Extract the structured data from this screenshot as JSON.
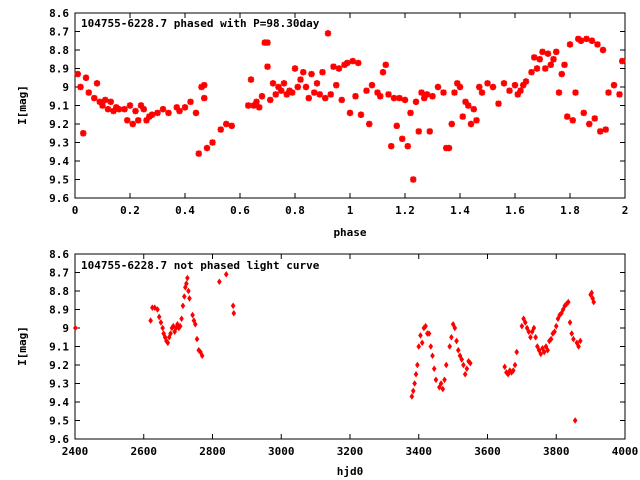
{
  "chart_data": [
    {
      "type": "scatter",
      "title": "104755-6228.7 phased with P=98.30day",
      "xlabel": "phase",
      "ylabel": "I[mag]",
      "xlim": [
        0,
        2
      ],
      "ylim": [
        9.6,
        8.6
      ],
      "y_inverted": true,
      "xticks": [
        "0",
        "0.2",
        "0.4",
        "0.6",
        "0.8",
        "1",
        "1.2",
        "1.4",
        "1.6",
        "1.8",
        "2"
      ],
      "yticks": [
        "8.6",
        "8.7",
        "8.8",
        "8.9",
        "9",
        "9.1",
        "9.2",
        "9.3",
        "9.4",
        "9.5",
        "9.6"
      ],
      "grid": false,
      "color": "#ff0000",
      "marker": "asterisk",
      "points": [
        [
          0.01,
          8.93
        ],
        [
          0.02,
          9.0
        ],
        [
          0.03,
          9.25
        ],
        [
          0.04,
          8.95
        ],
        [
          0.05,
          9.03
        ],
        [
          0.07,
          9.06
        ],
        [
          0.08,
          8.98
        ],
        [
          0.09,
          9.08
        ],
        [
          0.1,
          9.1
        ],
        [
          0.11,
          9.07
        ],
        [
          0.12,
          9.12
        ],
        [
          0.13,
          9.08
        ],
        [
          0.14,
          9.13
        ],
        [
          0.15,
          9.11
        ],
        [
          0.16,
          9.12
        ],
        [
          0.18,
          9.12
        ],
        [
          0.19,
          9.18
        ],
        [
          0.2,
          9.1
        ],
        [
          0.21,
          9.2
        ],
        [
          0.22,
          9.13
        ],
        [
          0.23,
          9.18
        ],
        [
          0.24,
          9.1
        ],
        [
          0.25,
          9.12
        ],
        [
          0.26,
          9.18
        ],
        [
          0.27,
          9.16
        ],
        [
          0.28,
          9.15
        ],
        [
          0.3,
          9.14
        ],
        [
          0.32,
          9.12
        ],
        [
          0.34,
          9.14
        ],
        [
          0.37,
          9.11
        ],
        [
          0.38,
          9.13
        ],
        [
          0.4,
          9.11
        ],
        [
          0.42,
          9.08
        ],
        [
          0.44,
          9.14
        ],
        [
          0.45,
          9.36
        ],
        [
          0.46,
          9.0
        ],
        [
          0.47,
          8.99
        ],
        [
          0.47,
          9.06
        ],
        [
          0.48,
          9.33
        ],
        [
          0.5,
          9.3
        ],
        [
          0.53,
          9.23
        ],
        [
          0.55,
          9.2
        ],
        [
          0.57,
          9.21
        ],
        [
          0.63,
          9.1
        ],
        [
          0.64,
          8.96
        ],
        [
          0.65,
          9.1
        ],
        [
          0.66,
          9.08
        ],
        [
          0.67,
          9.11
        ],
        [
          0.68,
          9.05
        ],
        [
          0.69,
          8.76
        ],
        [
          0.7,
          8.76
        ],
        [
          0.7,
          8.89
        ],
        [
          0.71,
          9.07
        ],
        [
          0.72,
          8.98
        ],
        [
          0.73,
          9.04
        ],
        [
          0.74,
          9.0
        ],
        [
          0.75,
          9.02
        ],
        [
          0.76,
          8.98
        ],
        [
          0.77,
          9.04
        ],
        [
          0.78,
          9.02
        ],
        [
          0.79,
          9.03
        ],
        [
          0.8,
          8.9
        ],
        [
          0.81,
          9.0
        ],
        [
          0.82,
          8.96
        ],
        [
          0.83,
          8.92
        ],
        [
          0.84,
          9.0
        ],
        [
          0.85,
          9.06
        ],
        [
          0.86,
          8.93
        ],
        [
          0.87,
          9.03
        ],
        [
          0.88,
          8.98
        ],
        [
          0.89,
          9.04
        ],
        [
          0.9,
          8.92
        ],
        [
          0.91,
          9.06
        ],
        [
          0.92,
          8.71
        ],
        [
          0.93,
          9.04
        ],
        [
          0.94,
          8.89
        ],
        [
          0.95,
          8.99
        ],
        [
          0.96,
          8.9
        ],
        [
          0.97,
          9.07
        ],
        [
          0.98,
          8.88
        ],
        [
          0.99,
          8.87
        ],
        [
          1.0,
          9.14
        ],
        [
          1.01,
          8.86
        ],
        [
          1.02,
          9.05
        ],
        [
          1.03,
          8.87
        ],
        [
          1.04,
          9.15
        ],
        [
          1.06,
          9.02
        ],
        [
          1.07,
          9.2
        ],
        [
          1.08,
          8.99
        ],
        [
          1.1,
          9.03
        ],
        [
          1.11,
          9.05
        ],
        [
          1.12,
          8.92
        ],
        [
          1.13,
          8.88
        ],
        [
          1.14,
          9.04
        ],
        [
          1.15,
          9.32
        ],
        [
          1.16,
          9.06
        ],
        [
          1.17,
          9.21
        ],
        [
          1.18,
          9.06
        ],
        [
          1.19,
          9.28
        ],
        [
          1.2,
          9.07
        ],
        [
          1.21,
          9.32
        ],
        [
          1.22,
          9.14
        ],
        [
          1.23,
          9.5
        ],
        [
          1.24,
          9.08
        ],
        [
          1.25,
          9.24
        ],
        [
          1.26,
          9.03
        ],
        [
          1.27,
          9.06
        ],
        [
          1.28,
          9.04
        ],
        [
          1.29,
          9.24
        ],
        [
          1.3,
          9.05
        ],
        [
          1.32,
          9.0
        ],
        [
          1.34,
          9.03
        ],
        [
          1.35,
          9.33
        ],
        [
          1.36,
          9.33
        ],
        [
          1.37,
          9.2
        ],
        [
          1.38,
          9.03
        ],
        [
          1.39,
          8.98
        ],
        [
          1.4,
          9.0
        ],
        [
          1.41,
          9.16
        ],
        [
          1.42,
          9.08
        ],
        [
          1.43,
          9.1
        ],
        [
          1.44,
          9.2
        ],
        [
          1.45,
          9.12
        ],
        [
          1.46,
          9.18
        ],
        [
          1.47,
          9.0
        ],
        [
          1.48,
          9.03
        ],
        [
          1.5,
          8.98
        ],
        [
          1.52,
          9.0
        ],
        [
          1.54,
          9.09
        ],
        [
          1.56,
          8.98
        ],
        [
          1.58,
          9.02
        ],
        [
          1.6,
          8.99
        ],
        [
          1.61,
          9.04
        ],
        [
          1.62,
          9.02
        ],
        [
          1.63,
          8.99
        ],
        [
          1.64,
          8.97
        ],
        [
          1.66,
          8.92
        ],
        [
          1.67,
          8.84
        ],
        [
          1.68,
          8.9
        ],
        [
          1.69,
          8.85
        ],
        [
          1.7,
          8.81
        ],
        [
          1.71,
          8.9
        ],
        [
          1.72,
          8.82
        ],
        [
          1.73,
          8.88
        ],
        [
          1.74,
          8.85
        ],
        [
          1.75,
          8.81
        ],
        [
          1.76,
          9.03
        ],
        [
          1.77,
          8.93
        ],
        [
          1.78,
          8.88
        ],
        [
          1.79,
          9.16
        ],
        [
          1.8,
          8.77
        ],
        [
          1.81,
          9.18
        ],
        [
          1.82,
          9.03
        ],
        [
          1.83,
          8.74
        ],
        [
          1.84,
          8.75
        ],
        [
          1.85,
          9.14
        ],
        [
          1.86,
          8.74
        ],
        [
          1.87,
          9.2
        ],
        [
          1.88,
          8.75
        ],
        [
          1.89,
          9.17
        ],
        [
          1.9,
          8.77
        ],
        [
          1.91,
          9.24
        ],
        [
          1.92,
          8.8
        ],
        [
          1.93,
          9.23
        ],
        [
          1.94,
          9.03
        ],
        [
          1.96,
          8.99
        ],
        [
          1.98,
          9.04
        ],
        [
          1.99,
          8.86
        ]
      ]
    },
    {
      "type": "scatter",
      "title": "104755-6228.7 not phased light curve",
      "xlabel": "hjd0",
      "ylabel": "I[mag]",
      "xlim": [
        2400,
        4000
      ],
      "ylim": [
        9.6,
        8.6
      ],
      "y_inverted": true,
      "xticks": [
        "2400",
        "2600",
        "2800",
        "3000",
        "3200",
        "3400",
        "3600",
        "3800",
        "4000"
      ],
      "yticks": [
        "8.6",
        "8.7",
        "8.8",
        "8.9",
        "9",
        "9.1",
        "9.2",
        "9.3",
        "9.4",
        "9.5",
        "9.6"
      ],
      "grid": false,
      "color": "#ff0000",
      "marker": "diamond",
      "points": [
        [
          2401,
          9.0
        ],
        [
          2620,
          8.96
        ],
        [
          2625,
          8.89
        ],
        [
          2632,
          8.89
        ],
        [
          2640,
          8.9
        ],
        [
          2645,
          8.94
        ],
        [
          2650,
          8.97
        ],
        [
          2655,
          9.0
        ],
        [
          2658,
          9.03
        ],
        [
          2662,
          9.05
        ],
        [
          2666,
          9.07
        ],
        [
          2670,
          9.08
        ],
        [
          2674,
          9.05
        ],
        [
          2678,
          9.03
        ],
        [
          2682,
          9.0
        ],
        [
          2686,
          8.99
        ],
        [
          2690,
          9.02
        ],
        [
          2694,
          9.0
        ],
        [
          2698,
          8.98
        ],
        [
          2702,
          9.0
        ],
        [
          2706,
          8.99
        ],
        [
          2710,
          8.95
        ],
        [
          2714,
          8.88
        ],
        [
          2718,
          8.83
        ],
        [
          2721,
          8.78
        ],
        [
          2724,
          8.76
        ],
        [
          2727,
          8.73
        ],
        [
          2730,
          8.8
        ],
        [
          2733,
          8.84
        ],
        [
          2742,
          8.93
        ],
        [
          2746,
          8.96
        ],
        [
          2750,
          8.98
        ],
        [
          2755,
          9.06
        ],
        [
          2760,
          9.12
        ],
        [
          2765,
          9.13
        ],
        [
          2770,
          9.15
        ],
        [
          2820,
          8.75
        ],
        [
          2840,
          8.71
        ],
        [
          2860,
          8.88
        ],
        [
          2862,
          8.92
        ],
        [
          3380,
          9.37
        ],
        [
          3384,
          9.34
        ],
        [
          3388,
          9.3
        ],
        [
          3392,
          9.25
        ],
        [
          3396,
          9.2
        ],
        [
          3400,
          9.1
        ],
        [
          3405,
          9.04
        ],
        [
          3410,
          9.08
        ],
        [
          3415,
          9.0
        ],
        [
          3420,
          8.99
        ],
        [
          3425,
          9.03
        ],
        [
          3430,
          9.03
        ],
        [
          3435,
          9.1
        ],
        [
          3440,
          9.15
        ],
        [
          3445,
          9.22
        ],
        [
          3450,
          9.28
        ],
        [
          3460,
          9.32
        ],
        [
          3465,
          9.3
        ],
        [
          3470,
          9.33
        ],
        [
          3475,
          9.28
        ],
        [
          3480,
          9.2
        ],
        [
          3490,
          9.1
        ],
        [
          3495,
          9.05
        ],
        [
          3500,
          8.98
        ],
        [
          3505,
          9.0
        ],
        [
          3510,
          9.07
        ],
        [
          3515,
          9.12
        ],
        [
          3520,
          9.15
        ],
        [
          3525,
          9.17
        ],
        [
          3530,
          9.2
        ],
        [
          3535,
          9.25
        ],
        [
          3540,
          9.22
        ],
        [
          3545,
          9.18
        ],
        [
          3550,
          9.19
        ],
        [
          3650,
          9.21
        ],
        [
          3655,
          9.24
        ],
        [
          3660,
          9.25
        ],
        [
          3665,
          9.23
        ],
        [
          3670,
          9.24
        ],
        [
          3675,
          9.23
        ],
        [
          3680,
          9.2
        ],
        [
          3685,
          9.13
        ],
        [
          3700,
          8.99
        ],
        [
          3705,
          8.95
        ],
        [
          3710,
          8.97
        ],
        [
          3715,
          9.0
        ],
        [
          3720,
          9.02
        ],
        [
          3725,
          9.05
        ],
        [
          3730,
          9.02
        ],
        [
          3735,
          9.0
        ],
        [
          3740,
          9.05
        ],
        [
          3745,
          9.1
        ],
        [
          3750,
          9.12
        ],
        [
          3755,
          9.14
        ],
        [
          3760,
          9.11
        ],
        [
          3765,
          9.13
        ],
        [
          3770,
          9.1
        ],
        [
          3775,
          9.12
        ],
        [
          3780,
          9.07
        ],
        [
          3785,
          9.06
        ],
        [
          3790,
          9.03
        ],
        [
          3795,
          9.02
        ],
        [
          3800,
          8.99
        ],
        [
          3805,
          8.95
        ],
        [
          3810,
          8.93
        ],
        [
          3815,
          8.92
        ],
        [
          3820,
          8.9
        ],
        [
          3825,
          8.88
        ],
        [
          3830,
          8.87
        ],
        [
          3835,
          8.86
        ],
        [
          3840,
          8.97
        ],
        [
          3845,
          9.03
        ],
        [
          3850,
          9.06
        ],
        [
          3855,
          9.5
        ],
        [
          3860,
          9.08
        ],
        [
          3865,
          9.1
        ],
        [
          3870,
          9.07
        ],
        [
          3900,
          8.82
        ],
        [
          3903,
          8.81
        ],
        [
          3906,
          8.84
        ],
        [
          3909,
          8.86
        ]
      ]
    }
  ]
}
